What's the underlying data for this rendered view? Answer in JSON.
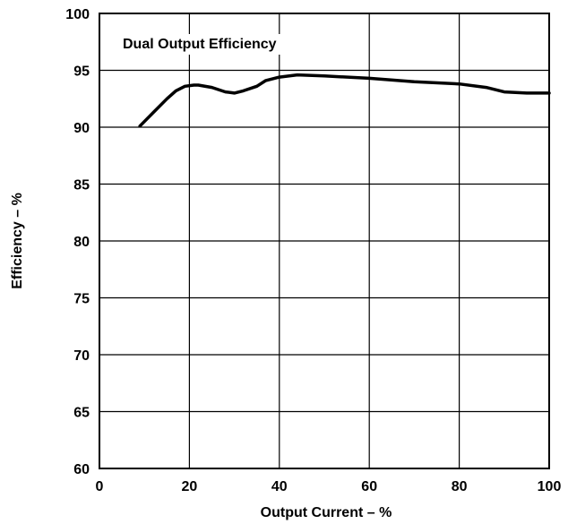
{
  "chart_data": {
    "type": "line",
    "title": "Dual Output Efficiency",
    "xlabel": "Output Current – %",
    "ylabel": "Efficiency – %",
    "xlim": [
      0,
      100
    ],
    "ylim": [
      60,
      100
    ],
    "xticks": [
      0,
      20,
      40,
      60,
      80,
      100
    ],
    "yticks": [
      60,
      65,
      70,
      75,
      80,
      85,
      90,
      95,
      100
    ],
    "grid": true,
    "series": [
      {
        "x": [
          9,
          12,
          15,
          17,
          19,
          21,
          22,
          25,
          28,
          30,
          32,
          35,
          37,
          40,
          44,
          50,
          60,
          70,
          80,
          86,
          90,
          95,
          100
        ],
        "values": [
          90.1,
          91.3,
          92.5,
          93.2,
          93.6,
          93.7,
          93.7,
          93.5,
          93.1,
          93.0,
          93.2,
          93.6,
          94.1,
          94.4,
          94.6,
          94.5,
          94.3,
          94.0,
          93.8,
          93.5,
          93.1,
          93.0,
          93.0
        ]
      }
    ]
  }
}
